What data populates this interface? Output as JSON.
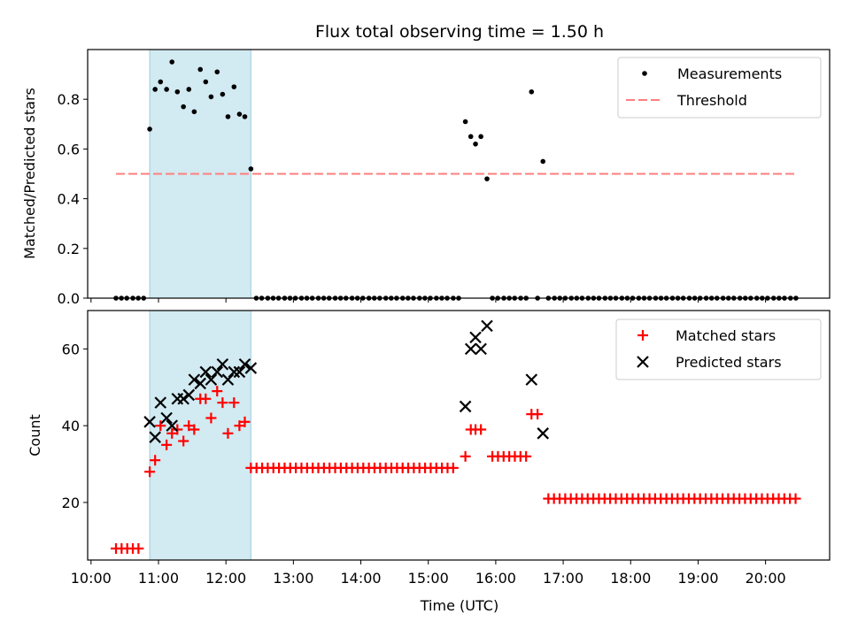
{
  "title": "Flux total observing time = 1.50 h",
  "colors": {
    "measurement": "#000000",
    "threshold": "#ff7f7f",
    "matched": "#ff0000",
    "predicted": "#000000",
    "shade": "#add8e6"
  },
  "chart_data": [
    {
      "type": "scatter",
      "ylabel": "Matched/Predicted stars",
      "xlim": [
        9.95,
        20.95
      ],
      "ylim": [
        0,
        1.0
      ],
      "yticks": [
        0.0,
        0.2,
        0.4,
        0.6,
        0.8
      ],
      "ytick_labels": [
        "0.0",
        "0.2",
        "0.4",
        "0.6",
        "0.8"
      ],
      "shaded_x_range": [
        10.87,
        12.37
      ],
      "legend": {
        "position": "upper right",
        "entries": [
          "Measurements",
          "Threshold"
        ]
      },
      "threshold": {
        "name": "Threshold",
        "value": 0.5,
        "x": [
          10.37,
          20.45
        ],
        "style": "dashed"
      },
      "series": [
        {
          "name": "Measurements",
          "marker": "dot",
          "points": [
            [
              10.37,
              0.0
            ],
            [
              10.45,
              0.0
            ],
            [
              10.53,
              0.0
            ],
            [
              10.62,
              0.0
            ],
            [
              10.7,
              0.0
            ],
            [
              10.78,
              0.0
            ],
            [
              10.87,
              0.68
            ],
            [
              10.95,
              0.84
            ],
            [
              11.03,
              0.87
            ],
            [
              11.12,
              0.84
            ],
            [
              11.2,
              0.95
            ],
            [
              11.28,
              0.83
            ],
            [
              11.37,
              0.77
            ],
            [
              11.45,
              0.84
            ],
            [
              11.53,
              0.75
            ],
            [
              11.62,
              0.92
            ],
            [
              11.7,
              0.87
            ],
            [
              11.78,
              0.81
            ],
            [
              11.87,
              0.91
            ],
            [
              11.95,
              0.82
            ],
            [
              12.03,
              0.73
            ],
            [
              12.12,
              0.85
            ],
            [
              12.2,
              0.74
            ],
            [
              12.28,
              0.73
            ],
            [
              12.37,
              0.52
            ],
            [
              12.45,
              0.0
            ],
            [
              12.53,
              0.0
            ],
            [
              12.62,
              0.0
            ],
            [
              12.7,
              0.0
            ],
            [
              12.78,
              0.0
            ],
            [
              12.87,
              0.0
            ],
            [
              12.95,
              0.0
            ],
            [
              13.03,
              0.0
            ],
            [
              13.12,
              0.0
            ],
            [
              13.2,
              0.0
            ],
            [
              13.28,
              0.0
            ],
            [
              13.37,
              0.0
            ],
            [
              13.45,
              0.0
            ],
            [
              13.53,
              0.0
            ],
            [
              13.62,
              0.0
            ],
            [
              13.7,
              0.0
            ],
            [
              13.78,
              0.0
            ],
            [
              13.87,
              0.0
            ],
            [
              13.95,
              0.0
            ],
            [
              14.03,
              0.0
            ],
            [
              14.12,
              0.0
            ],
            [
              14.2,
              0.0
            ],
            [
              14.28,
              0.0
            ],
            [
              14.37,
              0.0
            ],
            [
              14.45,
              0.0
            ],
            [
              14.53,
              0.0
            ],
            [
              14.62,
              0.0
            ],
            [
              14.7,
              0.0
            ],
            [
              14.78,
              0.0
            ],
            [
              14.87,
              0.0
            ],
            [
              14.95,
              0.0
            ],
            [
              15.03,
              0.0
            ],
            [
              15.12,
              0.0
            ],
            [
              15.2,
              0.0
            ],
            [
              15.28,
              0.0
            ],
            [
              15.37,
              0.0
            ],
            [
              15.45,
              0.0
            ],
            [
              15.55,
              0.71
            ],
            [
              15.63,
              0.65
            ],
            [
              15.7,
              0.62
            ],
            [
              15.78,
              0.65
            ],
            [
              15.87,
              0.48
            ],
            [
              15.95,
              0.0
            ],
            [
              16.03,
              0.0
            ],
            [
              16.12,
              0.0
            ],
            [
              16.2,
              0.0
            ],
            [
              16.28,
              0.0
            ],
            [
              16.37,
              0.0
            ],
            [
              16.45,
              0.0
            ],
            [
              16.53,
              0.83
            ],
            [
              16.62,
              0.0
            ],
            [
              16.7,
              0.55
            ],
            [
              16.78,
              0.0
            ],
            [
              16.87,
              0.0
            ],
            [
              16.95,
              0.0
            ],
            [
              17.03,
              0.0
            ],
            [
              17.12,
              0.0
            ],
            [
              17.2,
              0.0
            ],
            [
              17.28,
              0.0
            ],
            [
              17.37,
              0.0
            ],
            [
              17.45,
              0.0
            ],
            [
              17.53,
              0.0
            ],
            [
              17.62,
              0.0
            ],
            [
              17.7,
              0.0
            ],
            [
              17.78,
              0.0
            ],
            [
              17.87,
              0.0
            ],
            [
              17.95,
              0.0
            ],
            [
              18.03,
              0.0
            ],
            [
              18.12,
              0.0
            ],
            [
              18.2,
              0.0
            ],
            [
              18.28,
              0.0
            ],
            [
              18.37,
              0.0
            ],
            [
              18.45,
              0.0
            ],
            [
              18.53,
              0.0
            ],
            [
              18.62,
              0.0
            ],
            [
              18.7,
              0.0
            ],
            [
              18.78,
              0.0
            ],
            [
              18.87,
              0.0
            ],
            [
              18.95,
              0.0
            ],
            [
              19.03,
              0.0
            ],
            [
              19.12,
              0.0
            ],
            [
              19.2,
              0.0
            ],
            [
              19.28,
              0.0
            ],
            [
              19.37,
              0.0
            ],
            [
              19.45,
              0.0
            ],
            [
              19.53,
              0.0
            ],
            [
              19.62,
              0.0
            ],
            [
              19.7,
              0.0
            ],
            [
              19.78,
              0.0
            ],
            [
              19.87,
              0.0
            ],
            [
              19.95,
              0.0
            ],
            [
              20.03,
              0.0
            ],
            [
              20.12,
              0.0
            ],
            [
              20.2,
              0.0
            ],
            [
              20.28,
              0.0
            ],
            [
              20.37,
              0.0
            ],
            [
              20.45,
              0.0
            ]
          ]
        }
      ]
    },
    {
      "type": "scatter",
      "ylabel": "Count",
      "xlabel": "Time (UTC)",
      "xlim": [
        9.95,
        20.95
      ],
      "ylim": [
        5,
        70
      ],
      "yticks": [
        20,
        40,
        60
      ],
      "ytick_labels": [
        "20",
        "40",
        "60"
      ],
      "xticks": [
        10,
        11,
        12,
        13,
        14,
        15,
        16,
        17,
        18,
        19,
        20
      ],
      "xtick_labels": [
        "10:00",
        "11:00",
        "12:00",
        "13:00",
        "14:00",
        "15:00",
        "16:00",
        "17:00",
        "18:00",
        "19:00",
        "20:00"
      ],
      "shaded_x_range": [
        10.87,
        12.37
      ],
      "legend": {
        "position": "upper right",
        "entries": [
          "Matched stars",
          "Predicted stars"
        ]
      },
      "series": [
        {
          "name": "Matched stars",
          "marker": "plus",
          "segments": [
            {
              "x_start": 10.37,
              "x_end": 10.78,
              "step": 0.0833,
              "y": 8
            },
            {
              "x_start": 12.37,
              "x_end": 15.45,
              "step": 0.0833,
              "y": 29
            },
            {
              "x_start": 15.95,
              "x_end": 16.45,
              "step": 0.0833,
              "y": 32
            },
            {
              "x_start": 16.78,
              "x_end": 20.45,
              "step": 0.0833,
              "y": 21
            }
          ],
          "points": [
            [
              10.87,
              28
            ],
            [
              10.95,
              31
            ],
            [
              11.03,
              40
            ],
            [
              11.12,
              35
            ],
            [
              11.2,
              38
            ],
            [
              11.28,
              39
            ],
            [
              11.37,
              36
            ],
            [
              11.45,
              40
            ],
            [
              11.53,
              39
            ],
            [
              11.62,
              47
            ],
            [
              11.7,
              47
            ],
            [
              11.78,
              42
            ],
            [
              11.87,
              49
            ],
            [
              11.95,
              46
            ],
            [
              12.03,
              38
            ],
            [
              12.12,
              46
            ],
            [
              12.2,
              40
            ],
            [
              12.28,
              41
            ],
            [
              15.55,
              32
            ],
            [
              15.63,
              39
            ],
            [
              15.7,
              39
            ],
            [
              15.78,
              39
            ],
            [
              16.53,
              43
            ],
            [
              16.62,
              43
            ]
          ]
        },
        {
          "name": "Predicted stars",
          "marker": "x",
          "points": [
            [
              10.87,
              41
            ],
            [
              10.95,
              37
            ],
            [
              11.03,
              46
            ],
            [
              11.12,
              42
            ],
            [
              11.2,
              40
            ],
            [
              11.28,
              47
            ],
            [
              11.37,
              47
            ],
            [
              11.45,
              48
            ],
            [
              11.53,
              52
            ],
            [
              11.62,
              51
            ],
            [
              11.7,
              54
            ],
            [
              11.78,
              52
            ],
            [
              11.87,
              54
            ],
            [
              11.95,
              56
            ],
            [
              12.03,
              52
            ],
            [
              12.12,
              54
            ],
            [
              12.2,
              54
            ],
            [
              12.28,
              56
            ],
            [
              12.37,
              55
            ],
            [
              15.55,
              45
            ],
            [
              15.63,
              60
            ],
            [
              15.7,
              63
            ],
            [
              15.78,
              60
            ],
            [
              15.87,
              66
            ],
            [
              16.53,
              52
            ],
            [
              16.7,
              38
            ]
          ]
        }
      ]
    }
  ]
}
